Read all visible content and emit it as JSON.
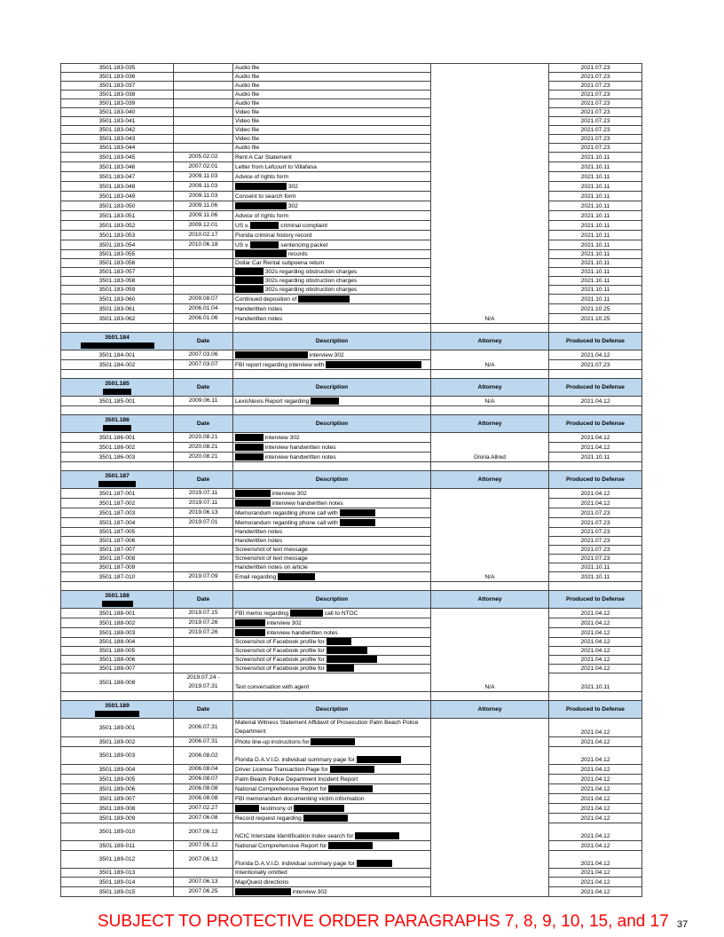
{
  "columns": {
    "id": "",
    "date": "Date",
    "description": "Description",
    "attorney": "Attorney",
    "produced": "Produced to Defense"
  },
  "redaction_marker": "█",
  "sections": [
    {
      "header": null,
      "attorney": "N/A",
      "rows": [
        {
          "id": "3501.183-035",
          "date": "",
          "description": "Audio file",
          "produced": "2021.07.23"
        },
        {
          "id": "3501.183-036",
          "date": "",
          "description": "Audio file",
          "produced": "2021.07.23"
        },
        {
          "id": "3501.183-037",
          "date": "",
          "description": "Audio file",
          "produced": "2021.07.23"
        },
        {
          "id": "3501.183-038",
          "date": "",
          "description": "Audio file",
          "produced": "2021.07.23"
        },
        {
          "id": "3501.183-039",
          "date": "",
          "description": "Audio file",
          "produced": "2021.07.23"
        },
        {
          "id": "3501.183-040",
          "date": "",
          "description": "Video file",
          "produced": "2021.07.23"
        },
        {
          "id": "3501.183-041",
          "date": "",
          "description": "Video file",
          "produced": "2021.07.23"
        },
        {
          "id": "3501.183-042",
          "date": "",
          "description": "Video file",
          "produced": "2021.07.23"
        },
        {
          "id": "3501.183-043",
          "date": "",
          "description": "Video file",
          "produced": "2021.07.23"
        },
        {
          "id": "3501.183-044",
          "date": "",
          "description": "Audio file",
          "produced": "2021.07.23"
        },
        {
          "id": "3501.183-045",
          "date": "2005.02.02",
          "description": "Rent A Car Statement",
          "produced": "2021.10.11"
        },
        {
          "id": "3501.183-046",
          "date": "2007.02.01",
          "description": "Letter from Lefcourt to Villafana",
          "produced": "2021.10.11"
        },
        {
          "id": "3501.183-047",
          "date": "2009.11.03",
          "description": "Advice of rights form",
          "produced": "2021.10.11"
        },
        {
          "id": "3501.183-048",
          "date": "2009.11.03",
          "description": "█ 302",
          "produced": "2021.10.11"
        },
        {
          "id": "3501.183-049",
          "date": "2009.11.03",
          "description": "Consent to search form",
          "produced": "2021.10.11"
        },
        {
          "id": "3501.183-050",
          "date": "2009.11.06",
          "description": "█ 302",
          "produced": "2021.10.11"
        },
        {
          "id": "3501.183-051",
          "date": "2009.11.06",
          "description": "Advice of rights form",
          "produced": "2021.10.11"
        },
        {
          "id": "3501.183-052",
          "date": "2009.12.01",
          "description": "US v. █ criminal complaint",
          "produced": "2021.10.11"
        },
        {
          "id": "3501.183-053",
          "date": "2010.02.17",
          "description": "Florida criminal history record",
          "produced": "2021.10.11"
        },
        {
          "id": "3501.183-054",
          "date": "2010.06.18",
          "description": "US v. █ sentencing packet",
          "produced": "2021.10.11"
        },
        {
          "id": "3501.183-055",
          "date": "",
          "description": "█ records",
          "produced": "2021.10.11"
        },
        {
          "id": "3501.183-056",
          "date": "",
          "description": "Dollar Car Rental subpoena return",
          "produced": "2021.10.11"
        },
        {
          "id": "3501.183-057",
          "date": "",
          "description": "█ 302s regarding obstruction charges",
          "produced": "2021.10.11"
        },
        {
          "id": "3501.183-058",
          "date": "",
          "description": "█ 302s regarding obstruction charges",
          "produced": "2021.10.11"
        },
        {
          "id": "3501.183-059",
          "date": "",
          "description": "█ 302s regarding obstruction charges",
          "produced": "2021.10.11"
        },
        {
          "id": "3501.183-060",
          "date": "2009.08.07",
          "description": "Continued deposition of █",
          "produced": "2021.10.11"
        },
        {
          "id": "3501.183-061",
          "date": "2006.01.04",
          "description": "Handwritten notes",
          "produced": "2021.10.25"
        },
        {
          "id": "3501.183-062",
          "date": "2006.01.06",
          "description": "Handwritten notes",
          "produced": "2021.10.25"
        }
      ]
    },
    {
      "header": "3501.184",
      "attorney": "N/A",
      "rows": [
        {
          "id": "3501.184-001",
          "date": "2007.03.06",
          "description": "█ interview 302",
          "produced": "2021.04.12"
        },
        {
          "id": "3501.184-002",
          "date": "2007.03.07",
          "description": "FBI report regarding interview with █",
          "produced": "2021.07.23"
        }
      ]
    },
    {
      "header": "3501.185",
      "attorney": "N/A",
      "rows": [
        {
          "id": "3501.185-001",
          "date": "2009.06.11",
          "description": "LexisNexis Report regarding █",
          "produced": "2021.04.12"
        }
      ]
    },
    {
      "header": "3501.186",
      "attorney": "Gloria Allred",
      "rows": [
        {
          "id": "3501.186-001",
          "date": "2020.08.21",
          "description": "█ interview 302",
          "produced": "2021.04.12"
        },
        {
          "id": "3501.186-002",
          "date": "2020.08.21",
          "description": "█ interview handwritten notes",
          "produced": "2021.04.12"
        },
        {
          "id": "3501.186-003",
          "date": "2020.08.21",
          "description": "█ interview handwritten notes",
          "produced": "2021.10.11"
        }
      ]
    },
    {
      "header": "3501.187",
      "attorney": "N/A",
      "rows": [
        {
          "id": "3501.187-001",
          "date": "2019.07.11",
          "description": "█ interview 302",
          "produced": "2021.04.12"
        },
        {
          "id": "3501.187-002",
          "date": "2019.07.11",
          "description": "█ interview handwritten notes",
          "produced": "2021.04.12"
        },
        {
          "id": "3501.187-003",
          "date": "2019.06.13",
          "description": "Memorandum regarding phone call with █",
          "produced": "2021.07.23"
        },
        {
          "id": "3501.187-004",
          "date": "2019.07.01",
          "description": "Memorandum regarding phone call with █",
          "produced": "2021.07.23"
        },
        {
          "id": "3501.187-005",
          "date": "",
          "description": "Handwritten notes",
          "produced": "2021.07.23"
        },
        {
          "id": "3501.187-006",
          "date": "",
          "description": "Handwritten notes",
          "produced": "2021.07.23"
        },
        {
          "id": "3501.187-007",
          "date": "",
          "description": "Screenshot of text message",
          "produced": "2021.07.23"
        },
        {
          "id": "3501.187-008",
          "date": "",
          "description": "Screenshot of text message",
          "produced": "2021.07.23"
        },
        {
          "id": "3501.187-009",
          "date": "",
          "description": "Handwritten notes on article",
          "produced": "2021.10.11"
        },
        {
          "id": "3501.187-010",
          "date": "2019.07.09",
          "description": "Email regarding █",
          "produced": "2021.10.11"
        }
      ]
    },
    {
      "header": "3501.188",
      "attorney": "N/A",
      "rows": [
        {
          "id": "3501.188-001",
          "date": "2019.07.15",
          "description": "FBI memo regarding █ call to NTOC",
          "produced": "2021.04.12"
        },
        {
          "id": "3501.188-002",
          "date": "2019.07.26",
          "description": "█ interview 302",
          "produced": "2021.04.12"
        },
        {
          "id": "3501.188-003",
          "date": "2019.07.26",
          "description": "█ interview handwritten notes",
          "produced": "2021.04.12"
        },
        {
          "id": "3501.188-004",
          "date": "",
          "description": "Screenshot of Facebook profile for █",
          "produced": "2021.04.12"
        },
        {
          "id": "3501.188-005",
          "date": "",
          "description": "Screenshot of Facebook profile for █",
          "produced": "2021.04.12"
        },
        {
          "id": "3501.188-006",
          "date": "",
          "description": "Screenshot of Facebook profile for █",
          "produced": "2021.04.12"
        },
        {
          "id": "3501.188-007",
          "date": "",
          "description": "Screenshot of Facebook profile for █",
          "produced": "2021.04.12"
        },
        {
          "id": "3501.188-008",
          "date": "2019.07.24 -\n2019.07.31",
          "description": "Text conversation with agent",
          "produced": "2021.10.11",
          "tall": true
        }
      ]
    },
    {
      "header": "3501.189",
      "attorney": "",
      "rows": [
        {
          "id": "3501.189-001",
          "date": "2006.07.31",
          "description": "Material Witness Statement Affidavit of Prosecution Palm Beach Police Department",
          "produced": "2021.04.12",
          "tall": true
        },
        {
          "id": "3501.189-002",
          "date": "2006.07.31",
          "description": "Photo line-up instructions for █",
          "produced": "2021.04.12"
        },
        {
          "id": "3501.189-003",
          "date": "2006.08.02",
          "description": "Florida D.A.V.I.D. individual summary page for █",
          "produced": "2021.04.12",
          "tall": true
        },
        {
          "id": "3501.189-004",
          "date": "2006.08.04",
          "description": "Driver License Transaction Page for █",
          "produced": "2021.04.12"
        },
        {
          "id": "3501.189-005",
          "date": "2006.08.07",
          "description": "Palm Beach Police Department Incident Report",
          "produced": "2021.04.12"
        },
        {
          "id": "3501.189-006",
          "date": "2006.08.08",
          "description": "National Comprehensive Report for █",
          "produced": "2021.04.12"
        },
        {
          "id": "3501.189-007",
          "date": "2006.08.08",
          "description": "FBI memorandum documenting victim information",
          "produced": "2021.04.12"
        },
        {
          "id": "3501.189-008",
          "date": "2007.02.27",
          "description": "█ testimony of █",
          "produced": "2021.04.12"
        },
        {
          "id": "3501.189-009",
          "date": "2007.06.08",
          "description": "Record request regarding █",
          "produced": "2021.04.12"
        },
        {
          "id": "3501.189-010",
          "date": "2007.06.12",
          "description": "NCIC Interstate Identification Index search for █",
          "produced": "2021.04.12",
          "tall": true
        },
        {
          "id": "3501.189-011",
          "date": "2007.06.12",
          "description": "National Comprehensive Report for █",
          "produced": "2021.04.12"
        },
        {
          "id": "3501.189-012",
          "date": "2007.06.12",
          "description": "Florida D.A.V.I.D. individual summary page for █",
          "produced": "2021.04.12",
          "tall": true
        },
        {
          "id": "3501.189-013",
          "date": "",
          "description": "Intentionally omitted",
          "produced": "2021.04.12"
        },
        {
          "id": "3501.189-014",
          "date": "2007.06.13",
          "description": "MapQuest directions",
          "produced": "2021.04.12"
        },
        {
          "id": "3501.189-015",
          "date": "2007.06.25",
          "description": "█ interview 302",
          "produced": "2021.04.12"
        }
      ]
    }
  ],
  "footer": {
    "notice": "SUBJECT TO PROTECTIVE ORDER PARAGRAPHS 7, 8, 9, 10, 15, and 17",
    "notice_color": "#ff0000",
    "page_number": "37"
  },
  "colors": {
    "header_fill": "#bdd7ee",
    "redaction": "#000000"
  }
}
